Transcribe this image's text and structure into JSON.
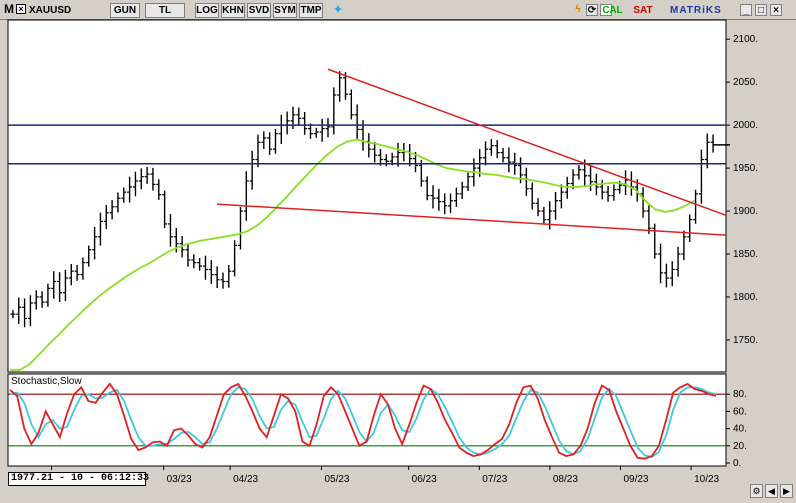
{
  "toolbar": {
    "menu_letter": "M",
    "symbol": "XAUUSD",
    "period": "GUN",
    "currency": "TL",
    "buttons": [
      "LOG",
      "KHN",
      "SVD",
      "SYM",
      "TMP"
    ],
    "buy_label": "AL",
    "sell_label": "SAT",
    "brand": "MATRiKS",
    "brand_color": "#1a3aa8",
    "buy_color": "#00aa00",
    "sell_color": "#cc0000",
    "icons": [
      "twitter-icon",
      "lightning-icon",
      "refresh-icon",
      "copyright-icon",
      "minimize-icon",
      "maximize-icon",
      "close-icon"
    ]
  },
  "status_readout": "1977.21 - 10 - 06:12:33",
  "chart_data": [
    {
      "type": "ohlc",
      "symbol": "XAUUSD",
      "ylim": [
        1715,
        2120
      ],
      "y_ticks": [
        "2100.",
        "2050.",
        "2000.",
        "1950.",
        "1900.",
        "1850.",
        "1800.",
        "1750."
      ],
      "x_ticks": [
        "/23",
        "03/23",
        "04/23",
        "05/23",
        "06/23",
        "07/23",
        "08/23",
        "09/23",
        "10/23"
      ],
      "series": [
        {
          "values": [
            1780,
            1788,
            1775,
            1793,
            1800,
            1794,
            1810,
            1818,
            1805,
            1822,
            1830,
            1826,
            1840,
            1855,
            1870,
            1888,
            1898,
            1905,
            1915,
            1922,
            1928,
            1935,
            1940,
            1943,
            1931,
            1919,
            1885,
            1870,
            1862,
            1855,
            1843,
            1840,
            1836,
            1832,
            1826,
            1820,
            1818,
            1830,
            1860,
            1900,
            1935,
            1960,
            1980,
            1985,
            1972,
            1990,
            2000,
            2005,
            2012,
            2008,
            1996,
            1990,
            1992,
            1996,
            1998,
            2035,
            2055,
            2036,
            2012,
            1995,
            1981,
            1972,
            1965,
            1960,
            1958,
            1963,
            1968,
            1969,
            1961,
            1953,
            1935,
            1918,
            1915,
            1911,
            1906,
            1912,
            1920,
            1928,
            1940,
            1950,
            1962,
            1972,
            1976,
            1968,
            1962,
            1957,
            1953,
            1942,
            1926,
            1909,
            1900,
            1890,
            1900,
            1912,
            1922,
            1932,
            1942,
            1948,
            1941,
            1934,
            1928,
            1922,
            1918,
            1925,
            1930,
            1936,
            1928,
            1920,
            1900,
            1880,
            1850,
            1828,
            1822,
            1832,
            1850,
            1870,
            1890,
            1920,
            1960,
            1980,
            1977
          ],
          "color": "#000000"
        }
      ],
      "moving_average": {
        "name": "",
        "color": "#88e020",
        "values": [
          1700,
          1710,
          1722,
          1734,
          1746,
          1757,
          1769,
          1780,
          1791,
          1801,
          1810,
          1818,
          1826,
          1833,
          1839,
          1846,
          1853,
          1858,
          1862,
          1865,
          1867,
          1869,
          1871,
          1873,
          1877,
          1884,
          1894,
          1906,
          1918,
          1931,
          1943,
          1955,
          1966,
          1975,
          1981,
          1983,
          1980,
          1978,
          1975,
          1972,
          1969,
          1965,
          1960,
          1954,
          1950,
          1948,
          1946,
          1945,
          1943,
          1942,
          1940,
          1938,
          1937,
          1935,
          1933,
          1930,
          1928,
          1928,
          1929,
          1931,
          1932,
          1933,
          1931,
          1925,
          1912,
          1902,
          1899,
          1901,
          1906,
          1912
        ]
      },
      "annotations": {
        "horizontal_levels": [
          2000,
          1955
        ],
        "horizontal_level_color": "#1a237e",
        "trendlines": [
          {
            "from": [
              54,
              2065
            ],
            "to": [
              118,
              1895
            ],
            "color": "#dd2222"
          },
          {
            "from": [
              35,
              1908
            ],
            "to": [
              118,
              1872
            ],
            "color": "#dd2222"
          }
        ]
      }
    },
    {
      "type": "line",
      "title": "Stochastic,Slow",
      "ylim": [
        0,
        100
      ],
      "y_ticks": [
        "80.",
        "60.",
        "40.",
        "20.",
        "0."
      ],
      "reference_levels": [
        80,
        20
      ],
      "series": [
        {
          "name": "",
          "color": "#e02020",
          "values": [
            85,
            78,
            40,
            22,
            35,
            60,
            45,
            30,
            58,
            80,
            88,
            72,
            70,
            82,
            92,
            80,
            55,
            28,
            15,
            18,
            24,
            25,
            20,
            38,
            40,
            32,
            22,
            18,
            30,
            55,
            80,
            88,
            92,
            78,
            60,
            40,
            30,
            55,
            80,
            75,
            60,
            25,
            20,
            45,
            78,
            88,
            80,
            60,
            40,
            20,
            25,
            55,
            80,
            68,
            40,
            22,
            45,
            70,
            90,
            86,
            70,
            50,
            35,
            18,
            12,
            8,
            10,
            15,
            22,
            28,
            45,
            70,
            88,
            90,
            75,
            50,
            30,
            12,
            8,
            10,
            20,
            40,
            70,
            90,
            85,
            60,
            40,
            20,
            6,
            5,
            8,
            20,
            50,
            82,
            88,
            92,
            86,
            84,
            80,
            78
          ]
        },
        {
          "name": "",
          "color": "#40c8e0",
          "values": [
            80,
            82,
            70,
            45,
            30,
            45,
            50,
            40,
            42,
            62,
            78,
            80,
            75,
            76,
            82,
            85,
            72,
            50,
            30,
            20,
            20,
            22,
            22,
            28,
            35,
            36,
            30,
            22,
            24,
            40,
            60,
            80,
            88,
            86,
            74,
            55,
            40,
            42,
            62,
            72,
            68,
            48,
            30,
            32,
            52,
            74,
            84,
            75,
            56,
            36,
            25,
            35,
            58,
            68,
            55,
            38,
            36,
            52,
            74,
            86,
            80,
            65,
            48,
            30,
            18,
            12,
            10,
            12,
            16,
            22,
            32,
            52,
            72,
            85,
            82,
            66,
            46,
            26,
            14,
            10,
            14,
            28,
            52,
            76,
            86,
            78,
            58,
            38,
            18,
            9,
            7,
            13,
            32,
            62,
            82,
            88,
            88,
            86,
            82,
            80
          ]
        }
      ]
    }
  ]
}
